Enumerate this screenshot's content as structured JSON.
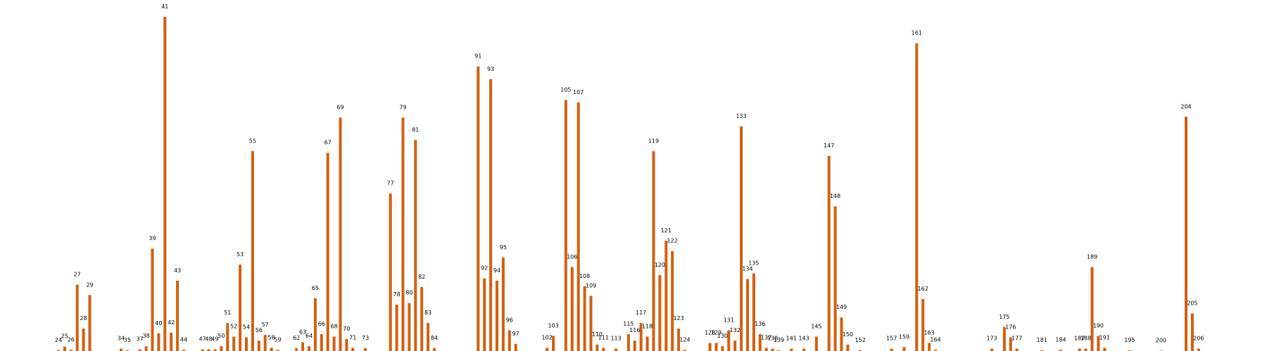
{
  "chart_data": {
    "type": "bar",
    "title": "",
    "xlabel": "",
    "ylabel": "",
    "grid": false,
    "bar_color": "#d35f0e",
    "ylim": [
      0,
      41.8
    ],
    "categories": [
      "24",
      "25",
      "26",
      "27",
      "28",
      "29",
      "34",
      "35",
      "37",
      "38",
      "39",
      "40",
      "41",
      "42",
      "43",
      "44",
      "47",
      "48",
      "49",
      "50",
      "51",
      "52",
      "53",
      "54",
      "55",
      "56",
      "57",
      "58",
      "59",
      "62",
      "63",
      "64",
      "65",
      "66",
      "67",
      "68",
      "69",
      "70",
      "71",
      "73",
      "77",
      "78",
      "79",
      "80",
      "81",
      "82",
      "83",
      "84",
      "91",
      "92",
      "93",
      "94",
      "95",
      "96",
      "97",
      "102",
      "103",
      "105",
      "106",
      "107",
      "108",
      "109",
      "110",
      "111",
      "113",
      "115",
      "116",
      "117",
      "118",
      "119",
      "120",
      "121",
      "122",
      "123",
      "124",
      "128",
      "129",
      "130",
      "131",
      "132",
      "133",
      "134",
      "135",
      "136",
      "137",
      "138",
      "139",
      "141",
      "143",
      "145",
      "147",
      "148",
      "149",
      "150",
      "152",
      "157",
      "159",
      "161",
      "162",
      "163",
      "164",
      "173",
      "175",
      "176",
      "177",
      "181",
      "184",
      "187",
      "188",
      "189",
      "190",
      "191",
      "195",
      "200",
      "204",
      "205",
      "206"
    ],
    "x": [
      24,
      25,
      26,
      27,
      28,
      29,
      34,
      35,
      37,
      38,
      39,
      40,
      41,
      42,
      43,
      44,
      47,
      48,
      49,
      50,
      51,
      52,
      53,
      54,
      55,
      56,
      57,
      58,
      59,
      62,
      63,
      64,
      65,
      66,
      67,
      68,
      69,
      70,
      71,
      73,
      77,
      78,
      79,
      80,
      81,
      82,
      83,
      84,
      91,
      92,
      93,
      94,
      95,
      96,
      97,
      102,
      103,
      105,
      106,
      107,
      108,
      109,
      110,
      111,
      113,
      115,
      116,
      117,
      118,
      119,
      120,
      121,
      122,
      123,
      124,
      128,
      129,
      130,
      131,
      132,
      133,
      134,
      135,
      136,
      137,
      138,
      139,
      141,
      143,
      145,
      147,
      148,
      149,
      150,
      152,
      157,
      159,
      161,
      162,
      163,
      164,
      173,
      175,
      176,
      177,
      181,
      184,
      187,
      188,
      189,
      190,
      191,
      195,
      200,
      204,
      205,
      206
    ],
    "values": [
      0.1,
      0.55,
      0.15,
      8.3,
      2.8,
      7.0,
      0.3,
      0.1,
      0.2,
      0.6,
      12.8,
      2.2,
      41.8,
      2.3,
      8.8,
      0.15,
      0.2,
      0.2,
      0.2,
      0.6,
      3.5,
      1.8,
      10.8,
      1.7,
      25.0,
      1.3,
      2.0,
      0.4,
      0.15,
      0.35,
      1.1,
      0.6,
      6.6,
      2.1,
      24.8,
      1.8,
      29.2,
      1.5,
      0.4,
      0.35,
      19.7,
      5.8,
      29.2,
      6.0,
      26.4,
      8.0,
      3.5,
      0.35,
      35.6,
      9.1,
      34.0,
      8.8,
      11.7,
      2.6,
      0.9,
      0.4,
      1.9,
      31.4,
      10.5,
      31.1,
      8.1,
      6.9,
      0.8,
      0.4,
      0.3,
      2.1,
      1.3,
      3.5,
      1.8,
      25.0,
      9.5,
      13.8,
      12.5,
      2.8,
      0.15,
      1.0,
      1.0,
      0.6,
      2.6,
      1.3,
      28.1,
      9.0,
      9.7,
      2.1,
      0.4,
      0.3,
      0.1,
      0.3,
      0.3,
      1.8,
      24.4,
      18.1,
      4.2,
      0.8,
      0.1,
      0.3,
      0.5,
      38.5,
      6.5,
      1.0,
      0.15,
      0.3,
      3.0,
      1.7,
      0.3,
      0.1,
      0.15,
      0.3,
      0.3,
      10.5,
      1.9,
      0.4,
      0.1,
      0.05,
      29.3,
      4.7,
      0.3
    ]
  }
}
